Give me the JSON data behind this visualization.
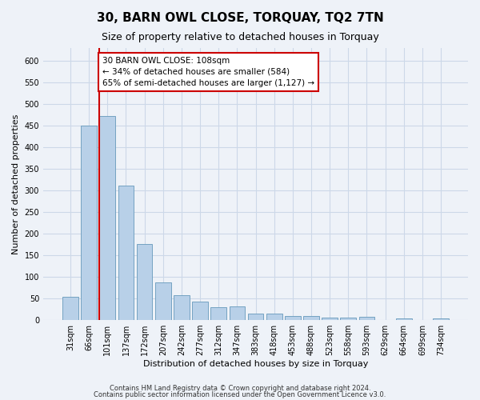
{
  "title": "30, BARN OWL CLOSE, TORQUAY, TQ2 7TN",
  "subtitle": "Size of property relative to detached houses in Torquay",
  "xlabel": "Distribution of detached houses by size in Torquay",
  "ylabel": "Number of detached properties",
  "categories": [
    "31sqm",
    "66sqm",
    "101sqm",
    "137sqm",
    "172sqm",
    "207sqm",
    "242sqm",
    "277sqm",
    "312sqm",
    "347sqm",
    "383sqm",
    "418sqm",
    "453sqm",
    "488sqm",
    "523sqm",
    "558sqm",
    "593sqm",
    "629sqm",
    "664sqm",
    "699sqm",
    "734sqm"
  ],
  "values": [
    54,
    450,
    472,
    311,
    176,
    88,
    58,
    42,
    30,
    31,
    15,
    15,
    10,
    10,
    6,
    6,
    8,
    0,
    4,
    0,
    4
  ],
  "bar_color": "#b8d0e8",
  "bar_edge_color": "#6699bb",
  "annotation_text_lines": [
    "30 BARN OWL CLOSE: 108sqm",
    "← 34% of detached houses are smaller (584)",
    "65% of semi-detached houses are larger (1,127) →"
  ],
  "annotation_box_color": "#ffffff",
  "annotation_box_edge": "#cc0000",
  "vline_color": "#cc0000",
  "footer1": "Contains HM Land Registry data © Crown copyright and database right 2024.",
  "footer2": "Contains public sector information licensed under the Open Government Licence v3.0.",
  "ylim": [
    0,
    630
  ],
  "yticks": [
    0,
    50,
    100,
    150,
    200,
    250,
    300,
    350,
    400,
    450,
    500,
    550,
    600
  ],
  "grid_color": "#ccd8e8",
  "background_color": "#eef2f8",
  "title_fontsize": 11,
  "subtitle_fontsize": 9,
  "xlabel_fontsize": 8,
  "ylabel_fontsize": 8,
  "tick_fontsize": 7,
  "annotation_fontsize": 7.5
}
